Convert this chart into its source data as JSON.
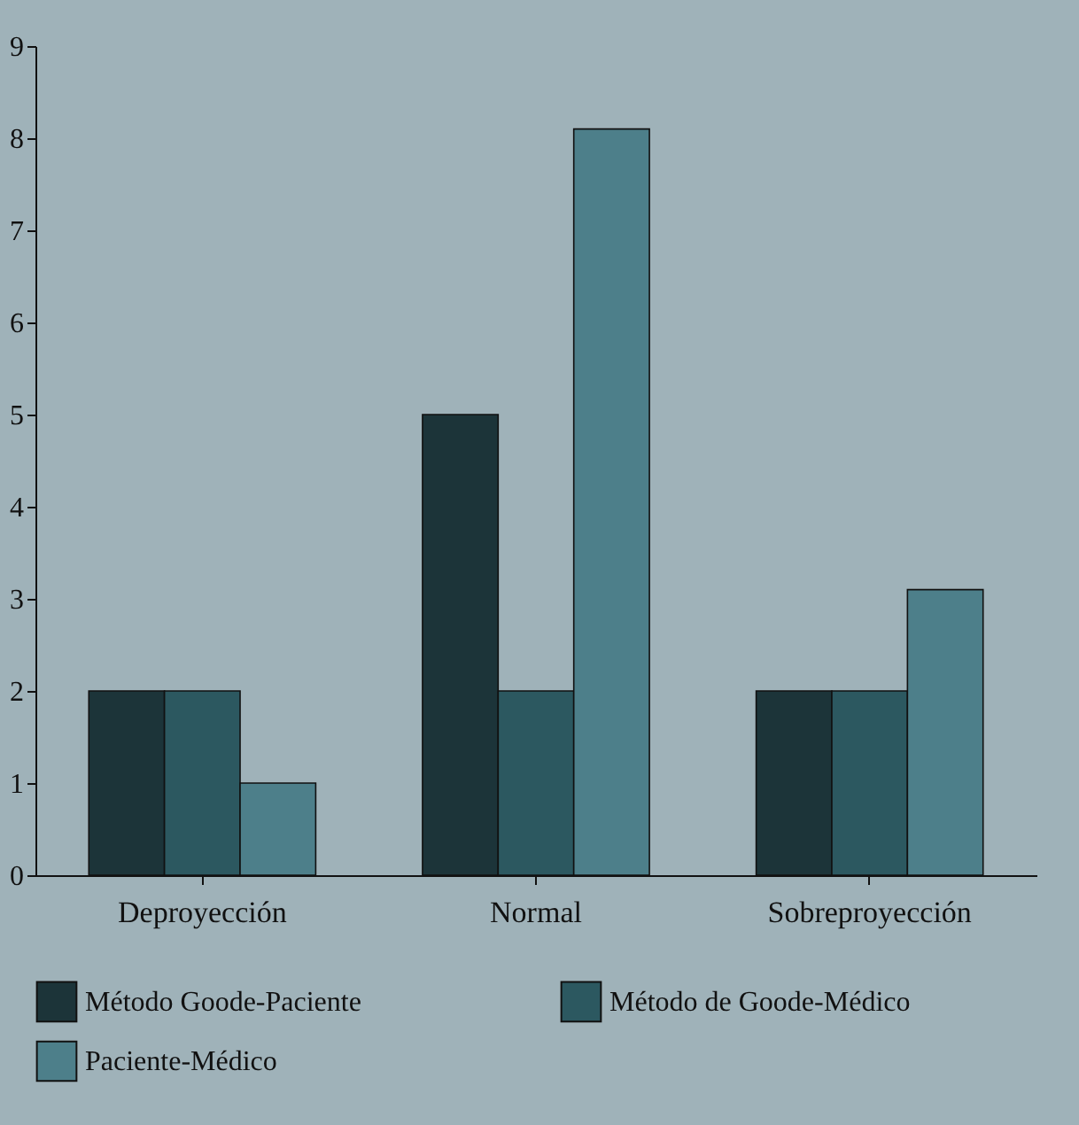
{
  "chart_data": {
    "type": "bar",
    "categories": [
      "Deproyección",
      "Normal",
      "Sobreproyección"
    ],
    "series": [
      {
        "name": "Método Goode-Paciente",
        "color": "#1c3439",
        "values": [
          2,
          5,
          2
        ]
      },
      {
        "name": "Método de Goode-Médico",
        "color": "#2c5860",
        "values": [
          2,
          2,
          2
        ]
      },
      {
        "name": "Paciente-Médico",
        "color": "#4d7f8a",
        "values": [
          1,
          8.1,
          3.1
        ]
      }
    ],
    "ylim": [
      0,
      9
    ],
    "yticks": [
      0,
      1,
      2,
      3,
      4,
      5,
      6,
      7,
      8,
      9
    ],
    "grid": false,
    "legend": "bottom"
  }
}
